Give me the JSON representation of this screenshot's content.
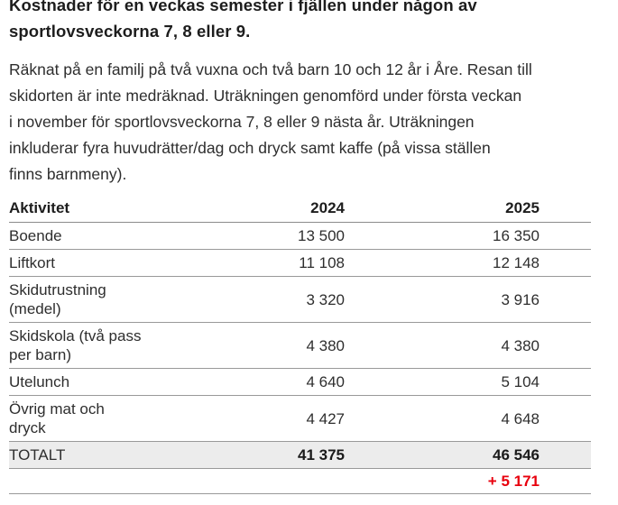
{
  "title": "Kostnader för en veckas semester i fjällen under någon av\nsportlovsveckorna 7, 8 eller 9.",
  "intro": "Räknat på en familj på två vuxna och två barn 10 och 12 år i Åre. Resan till\nskidorten är inte medräknad. Uträkningen genomförd under första veckan\ni november för sportlovsveckorna 7, 8 eller 9 nästa år. Uträkningen\ninkluderar fyra huvudrätter/dag och dryck samt kaffe (på vissa ställen\nfinns barnmeny).",
  "table": {
    "columns": [
      "Aktivitet",
      "2024",
      "2025"
    ],
    "rows": [
      {
        "label": "Boende",
        "y2024": "13 500",
        "y2025": "16 350"
      },
      {
        "label": "Liftkort",
        "y2024": "11 108",
        "y2025": "12 148"
      },
      {
        "label": "Skidutrustning\n(medel)",
        "y2024": "3 320",
        "y2025": "3 916"
      },
      {
        "label": "Skidskola (två pass\nper barn)",
        "y2024": "4 380",
        "y2025": "4 380"
      },
      {
        "label": "Utelunch",
        "y2024": "4 640",
        "y2025": "5 104"
      },
      {
        "label": "Övrig mat och\ndryck",
        "y2024": "4 427",
        "y2025": "4 648"
      }
    ],
    "total": {
      "label": "TOTALT",
      "y2024": "41 375",
      "y2025": "46 546"
    },
    "diff": {
      "y2025": "+ 5 171"
    }
  },
  "colors": {
    "heading_text": "#1d1d1d",
    "body_text": "#2e2e2e",
    "row_line": "#999999",
    "total_row_bg": "#ececec",
    "diff_red": "#e8000d"
  }
}
